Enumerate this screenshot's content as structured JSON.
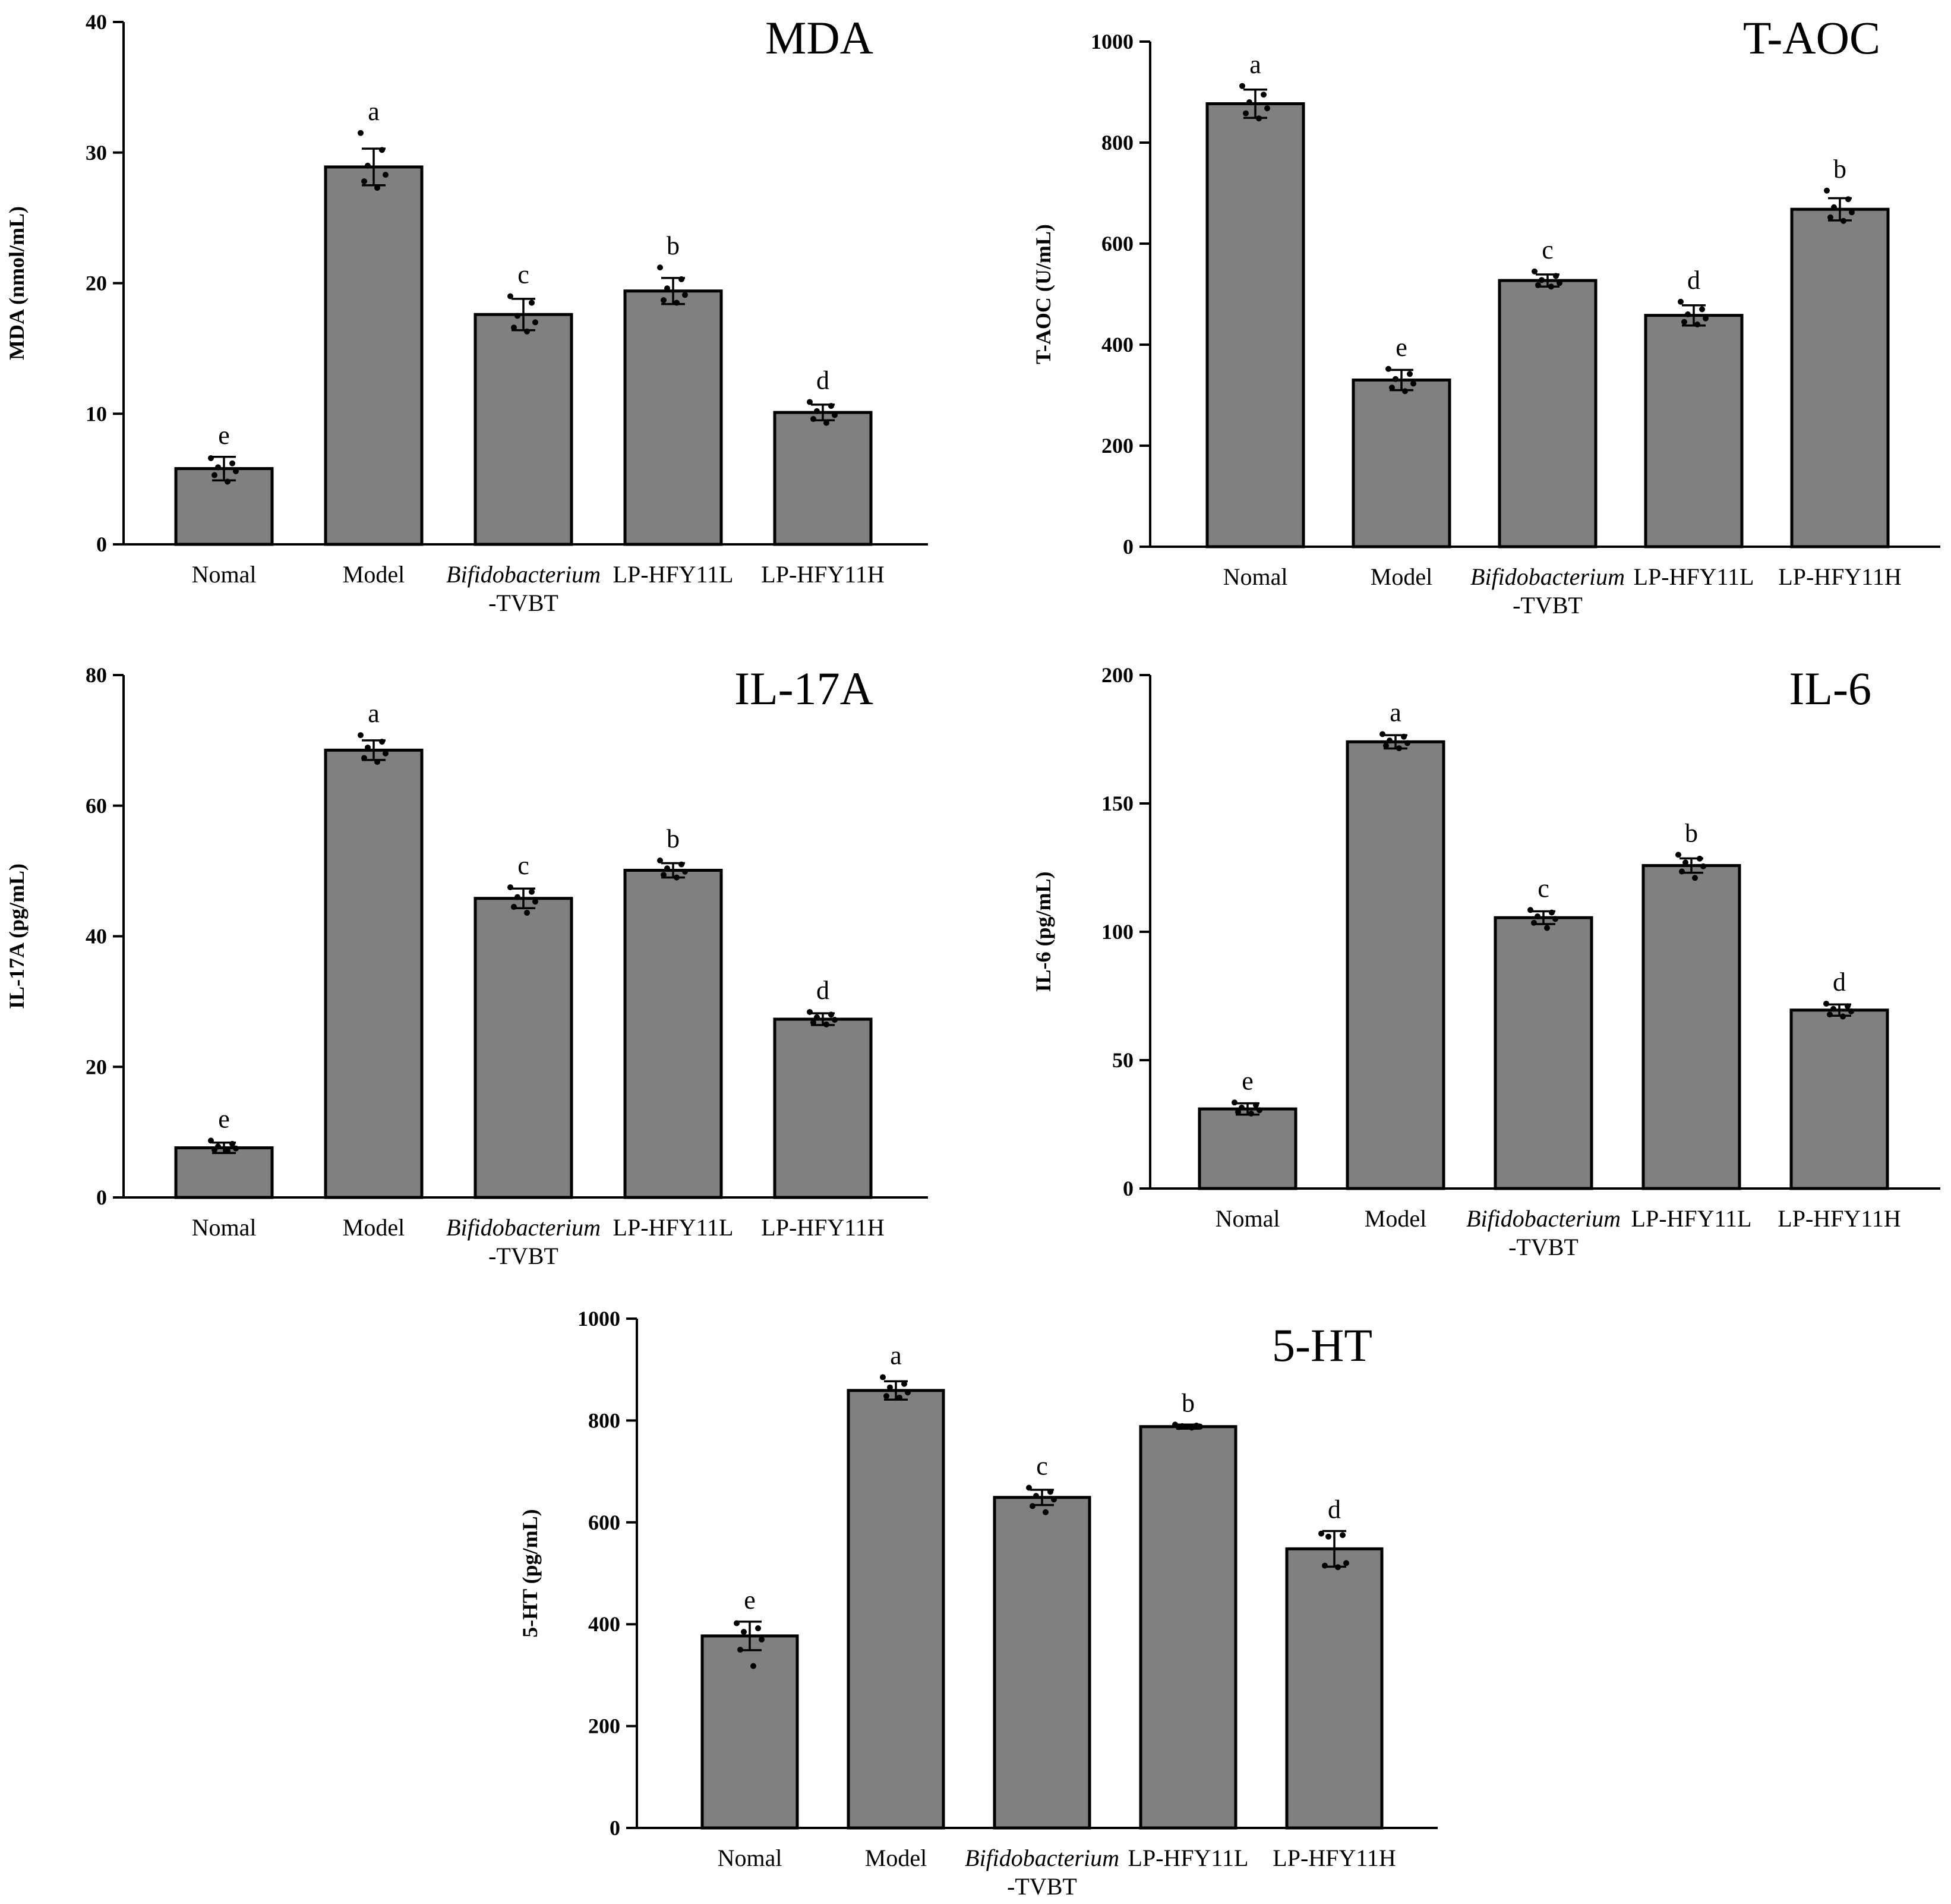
{
  "colors": {
    "bar": "#808080",
    "edge": "#000000"
  },
  "chart_data": [
    {
      "id": "mda",
      "type": "bar",
      "title": "MDA",
      "xlabel": "",
      "ylabel": "MDA (nmol/mL)",
      "ylim": [
        0,
        40
      ],
      "yticks": [
        0,
        10,
        20,
        30,
        40
      ],
      "categories": [
        {
          "line1": "Nomal",
          "italic": false,
          "line2": ""
        },
        {
          "line1": "Model",
          "italic": false,
          "line2": ""
        },
        {
          "line1": "Bifidobacterium",
          "italic": true,
          "line2": "-TVBT"
        },
        {
          "line1": "LP-HFY11L",
          "italic": false,
          "line2": ""
        },
        {
          "line1": "LP-HFY11H",
          "italic": false,
          "line2": ""
        }
      ],
      "values": [
        5.8,
        28.9,
        17.6,
        19.4,
        10.1
      ],
      "errors": [
        0.9,
        1.4,
        1.2,
        1.0,
        0.6
      ],
      "significance": [
        "e",
        "a",
        "c",
        "b",
        "d"
      ],
      "points": [
        [
          6.6,
          6.2,
          5.9,
          5.6,
          5.3,
          4.8
        ],
        [
          31.5,
          30.2,
          29.0,
          28.3,
          27.8,
          27.3
        ],
        [
          19.0,
          18.5,
          17.5,
          17.0,
          16.6,
          16.3
        ],
        [
          21.2,
          20.3,
          19.6,
          19.1,
          18.7,
          18.5
        ],
        [
          10.9,
          10.6,
          10.2,
          9.9,
          9.6,
          9.3
        ]
      ]
    },
    {
      "id": "taoc",
      "type": "bar",
      "title": "T-AOC",
      "xlabel": "",
      "ylabel": "T-AOC (U/mL)",
      "ylim": [
        0,
        1000
      ],
      "yticks": [
        0,
        200,
        400,
        600,
        800,
        1000
      ],
      "categories": [
        {
          "line1": "Nomal",
          "italic": false,
          "line2": ""
        },
        {
          "line1": "Model",
          "italic": false,
          "line2": ""
        },
        {
          "line1": "Bifidobacterium",
          "italic": true,
          "line2": "-TVBT"
        },
        {
          "line1": "LP-HFY11L",
          "italic": false,
          "line2": ""
        },
        {
          "line1": "LP-HFY11H",
          "italic": false,
          "line2": ""
        }
      ],
      "values": [
        877,
        330,
        527,
        458,
        668
      ],
      "errors": [
        28,
        20,
        12,
        20,
        22
      ],
      "significance": [
        "a",
        "e",
        "c",
        "d",
        "b"
      ],
      "points": [
        [
          912,
          895,
          880,
          868,
          858,
          848
        ],
        [
          352,
          342,
          332,
          323,
          315,
          308
        ],
        [
          545,
          536,
          528,
          522,
          518,
          515
        ],
        [
          485,
          470,
          460,
          452,
          445,
          440
        ],
        [
          705,
          688,
          672,
          662,
          652,
          645
        ]
      ]
    },
    {
      "id": "il17a",
      "type": "bar",
      "title": "IL-17A",
      "xlabel": "",
      "ylabel": "IL-17A (pg/mL)",
      "ylim": [
        0,
        80
      ],
      "yticks": [
        0,
        20,
        40,
        60,
        80
      ],
      "categories": [
        {
          "line1": "Nomal",
          "italic": false,
          "line2": ""
        },
        {
          "line1": "Model",
          "italic": false,
          "line2": ""
        },
        {
          "line1": "Bifidobacterium",
          "italic": true,
          "line2": "-TVBT"
        },
        {
          "line1": "LP-HFY11L",
          "italic": false,
          "line2": ""
        },
        {
          "line1": "LP-HFY11H",
          "italic": false,
          "line2": ""
        }
      ],
      "values": [
        7.6,
        68.5,
        45.8,
        50.1,
        27.3
      ],
      "errors": [
        0.8,
        1.5,
        1.5,
        1.1,
        0.9
      ],
      "significance": [
        "e",
        "a",
        "c",
        "b",
        "d"
      ],
      "points": [
        [
          8.7,
          8.2,
          7.8,
          7.5,
          7.3,
          7.1
        ],
        [
          70.8,
          69.8,
          68.9,
          68.0,
          67.3,
          66.7
        ],
        [
          47.5,
          46.8,
          46.0,
          45.3,
          44.5,
          43.6
        ],
        [
          51.6,
          51.0,
          50.4,
          49.9,
          49.4,
          49.0
        ],
        [
          28.4,
          28.0,
          27.6,
          27.2,
          26.8,
          26.5
        ]
      ]
    },
    {
      "id": "il6",
      "type": "bar",
      "title": "IL-6",
      "xlabel": "",
      "ylabel": "IL-6 (pg/mL)",
      "ylim": [
        0,
        200
      ],
      "yticks": [
        0,
        50,
        100,
        150,
        200
      ],
      "categories": [
        {
          "line1": "Nomal",
          "italic": false,
          "line2": ""
        },
        {
          "line1": "Model",
          "italic": false,
          "line2": ""
        },
        {
          "line1": "Bifidobacterium",
          "italic": true,
          "line2": "-TVBT"
        },
        {
          "line1": "LP-HFY11L",
          "italic": false,
          "line2": ""
        },
        {
          "line1": "LP-HFY11H",
          "italic": false,
          "line2": ""
        }
      ],
      "values": [
        31,
        174,
        105.5,
        125.8,
        69.5
      ],
      "errors": [
        2.2,
        2.6,
        2.5,
        2.8,
        2.2
      ],
      "significance": [
        "e",
        "a",
        "c",
        "b",
        "d"
      ],
      "points": [
        [
          33.5,
          32.5,
          31.5,
          30.5,
          29.8,
          29.2
        ],
        [
          177.0,
          176.0,
          174.5,
          173.5,
          172.5,
          171.5
        ],
        [
          108.5,
          107.5,
          106.0,
          105.0,
          103.5,
          101.5
        ],
        [
          130.0,
          128.5,
          127.0,
          125.5,
          123.5,
          121.0
        ],
        [
          72.0,
          71.0,
          70.0,
          69.0,
          67.8,
          67.0
        ]
      ]
    },
    {
      "id": "ht5",
      "type": "bar",
      "title": "5-HT",
      "xlabel": "",
      "ylabel": "5-HT (pg/mL)",
      "ylim": [
        0,
        1000
      ],
      "yticks": [
        0,
        200,
        400,
        600,
        800,
        1000
      ],
      "categories": [
        {
          "line1": "Nomal",
          "italic": false,
          "line2": ""
        },
        {
          "line1": "Model",
          "italic": false,
          "line2": ""
        },
        {
          "line1": "Bifidobacterium",
          "italic": true,
          "line2": "-TVBT"
        },
        {
          "line1": "LP-HFY11L",
          "italic": false,
          "line2": ""
        },
        {
          "line1": "LP-HFY11H",
          "italic": false,
          "line2": ""
        }
      ],
      "values": [
        377,
        859,
        649,
        788,
        548
      ],
      "errors": [
        28,
        18,
        15,
        4,
        35
      ],
      "significance": [
        "e",
        "a",
        "c",
        "b",
        "d"
      ],
      "points": [
        [
          402,
          392,
          385,
          370,
          350,
          318
        ],
        [
          885,
          872,
          865,
          855,
          848,
          845
        ],
        [
          668,
          660,
          652,
          645,
          632,
          620
        ],
        [
          792,
          790,
          789,
          788,
          787,
          786
        ],
        [
          578,
          575,
          572,
          520,
          515,
          512
        ]
      ]
    }
  ]
}
